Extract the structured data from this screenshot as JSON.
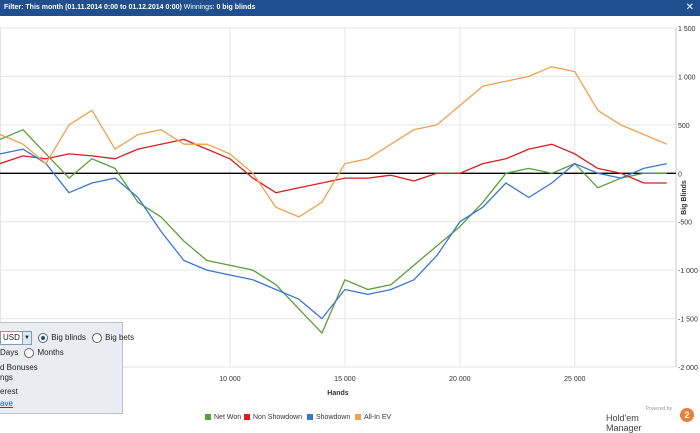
{
  "filter_bar": {
    "label": "Filter:",
    "range": "This month (01.11.2014 0:00 to 01.12.2014 0:00)",
    "winnings_label": "Winnings:",
    "winnings_value": "0 big blinds",
    "close_glyph": "✕"
  },
  "settings_panel": {
    "currency_value": "USD",
    "unit_options": [
      "Big blinds",
      "Big bets"
    ],
    "unit_selected": "Big blinds",
    "time_options": [
      "Days",
      "Months"
    ],
    "bonuses_text": "d Bonuses",
    "ngs_text": "ngs",
    "interest_text": "erest",
    "save_link": "ave"
  },
  "chart_data": {
    "type": "line",
    "xlabel": "Hands",
    "ylabel": "Big Blinds",
    "xlim": [
      0,
      29400
    ],
    "ylim": [
      -2000,
      1500
    ],
    "x_ticks": [
      10000,
      15000,
      20000,
      25000
    ],
    "x_tick_labels": [
      "10 000",
      "15 000",
      "20 000",
      "25 000"
    ],
    "y_ticks": [
      1500,
      1000,
      500,
      0,
      -500,
      -1000,
      -1500,
      -2000
    ],
    "y_tick_labels": [
      "1 500",
      "1 000",
      "500",
      "0",
      "-500",
      "-1 000",
      "-1 500",
      "-2 000"
    ],
    "grid": true,
    "legend_position": "bottom-center",
    "x": [
      0,
      1000,
      2000,
      3000,
      4000,
      5000,
      6000,
      7000,
      8000,
      9000,
      10000,
      11000,
      12000,
      13000,
      14000,
      15000,
      16000,
      17000,
      18000,
      19000,
      20000,
      21000,
      22000,
      23000,
      24000,
      25000,
      26000,
      27000,
      28000,
      29000
    ],
    "series": [
      {
        "name": "Net Won",
        "color": "#5a9e3a",
        "values": [
          350,
          450,
          200,
          -50,
          150,
          50,
          -300,
          -450,
          -700,
          -900,
          -950,
          -1000,
          -1150,
          -1400,
          -1650,
          -1100,
          -1200,
          -1150,
          -950,
          -750,
          -550,
          -300,
          0,
          50,
          0,
          100,
          -150,
          -50,
          0,
          0
        ]
      },
      {
        "name": "Non Showdown",
        "color": "#d62020",
        "values": [
          100,
          180,
          150,
          200,
          180,
          150,
          250,
          300,
          350,
          250,
          150,
          -50,
          -200,
          -150,
          -100,
          -50,
          -50,
          -20,
          -80,
          0,
          0,
          100,
          150,
          250,
          300,
          200,
          50,
          0,
          -100,
          -100
        ]
      },
      {
        "name": "Showdown",
        "color": "#3a76d6",
        "values": [
          200,
          250,
          100,
          -200,
          -100,
          -50,
          -250,
          -600,
          -900,
          -1000,
          -1050,
          -1100,
          -1200,
          -1300,
          -1500,
          -1200,
          -1250,
          -1200,
          -1100,
          -850,
          -500,
          -350,
          -100,
          -250,
          -100,
          100,
          0,
          -50,
          50,
          100
        ]
      },
      {
        "name": "All-In EV",
        "color": "#f0a050",
        "values": [
          400,
          300,
          100,
          500,
          650,
          250,
          400,
          450,
          300,
          300,
          200,
          0,
          -350,
          -450,
          -300,
          100,
          150,
          300,
          450,
          500,
          700,
          900,
          950,
          1000,
          1100,
          1050,
          650,
          500,
          400,
          300
        ]
      }
    ]
  },
  "logo": {
    "powered": "Powered by",
    "name": "Hold'em Manager",
    "badge": "2"
  }
}
